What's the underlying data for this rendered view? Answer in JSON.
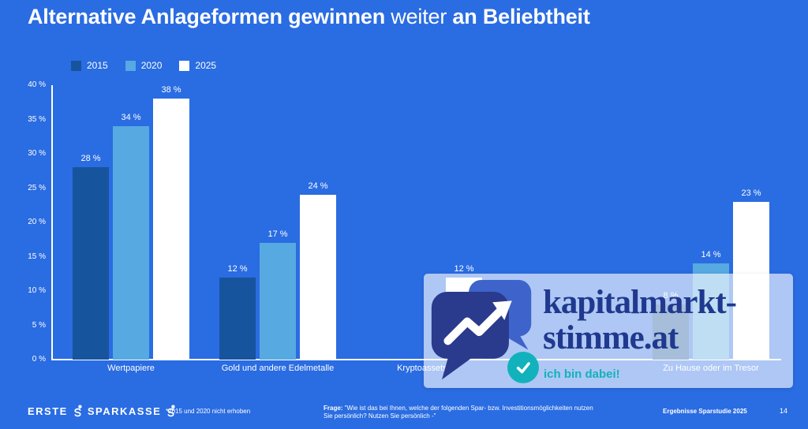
{
  "colors": {
    "background": "#2a6ce2",
    "bar_2015": "#17549e",
    "bar_2020": "#57a9e2",
    "bar_2025": "#ffffff",
    "watermark_navy": "#20398f",
    "watermark_teal": "#12b2bc"
  },
  "title": {
    "part1": "Alternative Anlageformen gewinnen",
    "part2": " weiter ",
    "part3": "an Beliebtheit"
  },
  "chart_data": {
    "type": "bar",
    "title": "Alternative Anlageformen gewinnen weiter an Beliebtheit",
    "xlabel": "",
    "ylabel": "",
    "ylim": [
      0,
      40
    ],
    "ytick_step": 5,
    "ytick_suffix": " %",
    "value_suffix": " %",
    "grid": false,
    "legend_position": "top-left",
    "categories": [
      "Wertpapiere",
      "Gold und andere Edelmetalle",
      "Kryptoassets*",
      "Zu Hause oder im Tresor"
    ],
    "series": [
      {
        "name": "2015",
        "color": "#17549e",
        "values": [
          28,
          12,
          null,
          8
        ]
      },
      {
        "name": "2020",
        "color": "#57a9e2",
        "values": [
          34,
          17,
          null,
          14
        ]
      },
      {
        "name": "2025",
        "color": "#ffffff",
        "values": [
          38,
          24,
          12,
          23
        ]
      }
    ],
    "footnote": "*2015 und 2020 nicht erhoben"
  },
  "watermark": {
    "brand_line1": "kapitalmarkt-",
    "brand_line2": "stimme.at",
    "tagline": "ich bin dabei!"
  },
  "footer": {
    "logo_erste": "ERSTE",
    "logo_sparkasse": "SPARKASSE",
    "footnote": "*2015 und 2020 nicht erhoben",
    "question_label": "Frage:",
    "question_text": " \"Wie ist das bei Ihnen, welche der folgenden Spar- bzw. Investitionsmöglichkeiten nutzen Sie persönlich? Nutzen Sie persönlich -\"",
    "source": "Ergebnisse Sparstudie 2025",
    "page_number": "14"
  }
}
